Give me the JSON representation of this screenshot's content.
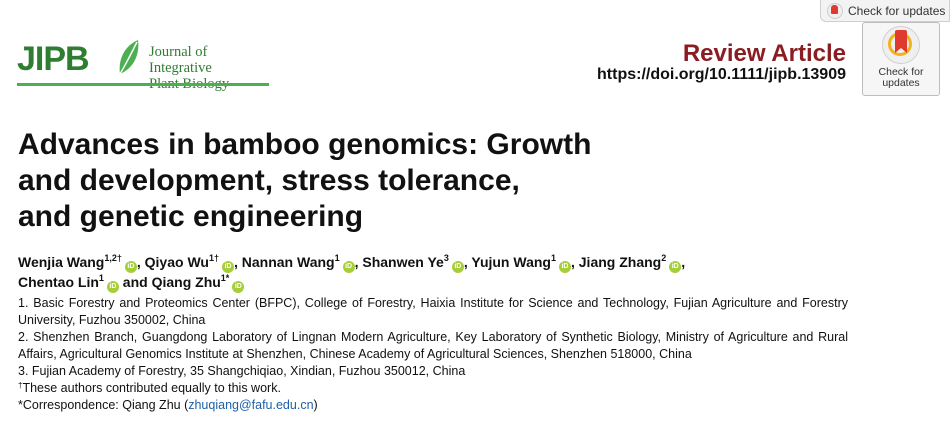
{
  "update_banner": {
    "label": "Check for updates",
    "icon": "check-for-updates-icon"
  },
  "update_badge": {
    "line1": "Check for",
    "line2": "updates",
    "icon": "crossmark-icon"
  },
  "journal": {
    "abbrev": "JIPB",
    "name_line1": "Journal of Integrative",
    "name_line2": "Plant Biology",
    "logo_icon": "leaf-icon",
    "brand_color": "#2e7d32"
  },
  "article": {
    "type": "Review Article",
    "doi": "https://doi.org/10.1111/jipb.13909",
    "title_lines": [
      "Advances in bamboo genomics: Growth",
      "and development, stress tolerance,",
      "and genetic engineering"
    ]
  },
  "authors": [
    {
      "name": "Wenjia Wang",
      "sup": "1,2†",
      "sep": ","
    },
    {
      "name": "Qiyao Wu",
      "sup": "1†",
      "sep": ","
    },
    {
      "name": "Nannan Wang",
      "sup": "1",
      "sep": ","
    },
    {
      "name": "Shanwen Ye",
      "sup": "3",
      "sep": ","
    },
    {
      "name": "Yujun Wang",
      "sup": "1",
      "sep": ","
    },
    {
      "name": "Jiang Zhang",
      "sup": "2",
      "sep": ","
    },
    {
      "name": "Chentao Lin",
      "sup": "1",
      "sep": "",
      "prefix_after": "and"
    },
    {
      "name": "Qiang Zhu",
      "sup": "1*",
      "sep": ""
    }
  ],
  "author_conjunction": "and",
  "affiliations": [
    "1. Basic Forestry and Proteomics Center (BFPC), College of Forestry, Haixia Institute for Science and Technology, Fujian Agriculture and Forestry University, Fuzhou 350002, China",
    "2. Shenzhen Branch, Guangdong Laboratory of Lingnan Modern Agriculture, Key Laboratory of Synthetic Biology, Ministry of Agriculture and Rural Affairs, Agricultural Genomics Institute at Shenzhen, Chinese Academy of Agricultural Sciences, Shenzhen 518000, China",
    "3. Fujian Academy of Forestry, 35 Shangchiqiao, Xindian, Fuzhou 350012, China"
  ],
  "notes": {
    "equal_sup": "†",
    "equal_text": "These authors contributed equally to this work.",
    "corr_prefix": "*Correspondence: Qiang Zhu (",
    "corr_email": "zhuqiang@fafu.edu.cn",
    "corr_suffix": ")"
  },
  "orcid_label": "iD"
}
